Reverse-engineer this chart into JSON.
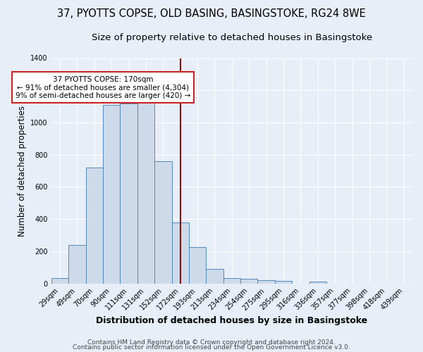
{
  "title_line1": "37, PYOTTS COPSE, OLD BASING, BASINGSTOKE, RG24 8WE",
  "title_line2": "Size of property relative to detached houses in Basingstoke",
  "xlabel": "Distribution of detached houses by size in Basingstoke",
  "ylabel": "Number of detached properties",
  "categories": [
    "29sqm",
    "49sqm",
    "70sqm",
    "90sqm",
    "111sqm",
    "131sqm",
    "152sqm",
    "172sqm",
    "193sqm",
    "213sqm",
    "234sqm",
    "254sqm",
    "275sqm",
    "295sqm",
    "316sqm",
    "336sqm",
    "357sqm",
    "377sqm",
    "398sqm",
    "418sqm",
    "439sqm"
  ],
  "values": [
    35,
    240,
    720,
    1110,
    1120,
    1130,
    760,
    380,
    225,
    90,
    35,
    28,
    22,
    15,
    0,
    12,
    0,
    0,
    0,
    0,
    0
  ],
  "bar_color": "#ccdaea",
  "bar_edge_color": "#5588bb",
  "vline_color": "#8b1010",
  "annotation_text": "37 PYOTTS COPSE: 170sqm\n← 91% of detached houses are smaller (4,304)\n9% of semi-detached houses are larger (420) →",
  "annotation_box_color": "white",
  "annotation_box_edge": "#cc2222",
  "ylim": [
    0,
    1400
  ],
  "yticks": [
    0,
    200,
    400,
    600,
    800,
    1000,
    1200,
    1400
  ],
  "bg_color": "#e8eef8",
  "grid_color": "white",
  "footer_line1": "Contains HM Land Registry data © Crown copyright and database right 2024.",
  "footer_line2": "Contains public sector information licensed under the Open Government Licence v3.0.",
  "title_fontsize": 10.5,
  "subtitle_fontsize": 9.5,
  "xlabel_fontsize": 9,
  "ylabel_fontsize": 8.5,
  "tick_fontsize": 7,
  "annot_fontsize": 7.5,
  "footer_fontsize": 6.5
}
